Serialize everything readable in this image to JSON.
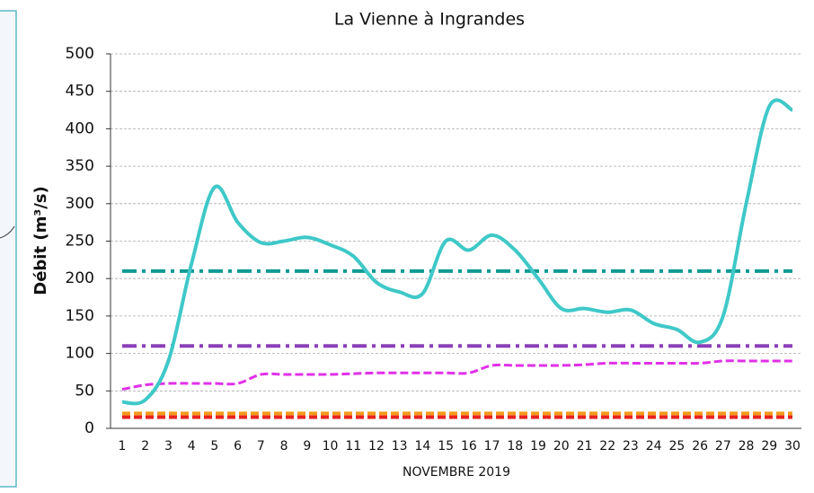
{
  "chart_data": {
    "type": "line",
    "title": "La Vienne à Ingrandes",
    "ylabel": "Débit (m³/s)",
    "xlabel": "NOVEMBRE 2019",
    "categories": [
      "1",
      "2",
      "3",
      "4",
      "5",
      "6",
      "7",
      "8",
      "9",
      "10",
      "11",
      "12",
      "13",
      "14",
      "15",
      "16",
      "17",
      "18",
      "19",
      "20",
      "21",
      "22",
      "23",
      "24",
      "25",
      "26",
      "27",
      "28",
      "29",
      "30"
    ],
    "series": [
      {
        "color": "#3fc8c8",
        "values": [
          35,
          38,
          90,
          220,
          322,
          275,
          248,
          250,
          255,
          245,
          230,
          195,
          182,
          180,
          250,
          238,
          258,
          238,
          200,
          160,
          160,
          155,
          158,
          140,
          132,
          115,
          150,
          300,
          430,
          425
        ]
      },
      {
        "color": "#e030e8",
        "dash": "dashed",
        "values": [
          52,
          58,
          60,
          60,
          60,
          60,
          72,
          72,
          72,
          72,
          73,
          74,
          74,
          74,
          74,
          74,
          84,
          84,
          84,
          84,
          85,
          87,
          87,
          87,
          87,
          87,
          90,
          90,
          90,
          90
        ]
      }
    ],
    "hlines": [
      {
        "value": 210,
        "color": "#0f9a94",
        "dash": "dashdot"
      },
      {
        "value": 110,
        "color": "#8a3fb8",
        "dash": "dashdot"
      },
      {
        "value": 20,
        "color": "#f39a1a",
        "dash": "dashed"
      },
      {
        "value": 15,
        "color": "#e8221e",
        "dash": "dashed"
      }
    ],
    "ylim": [
      0,
      500
    ],
    "yticks": [
      0,
      50,
      100,
      150,
      200,
      250,
      300,
      350,
      400,
      450,
      500
    ],
    "grid": true
  }
}
